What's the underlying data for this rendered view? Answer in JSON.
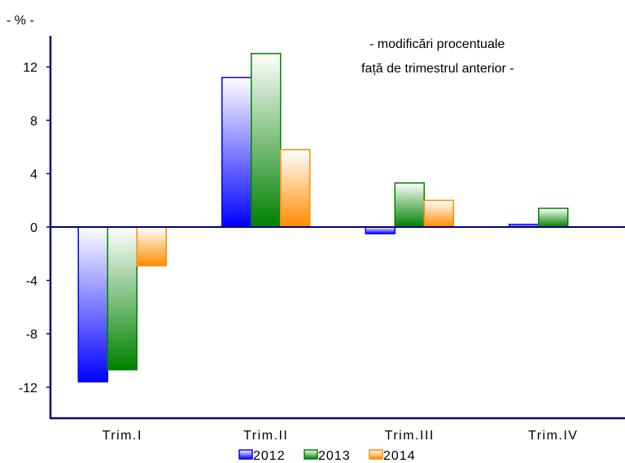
{
  "chart_data": {
    "type": "bar",
    "unit_label": "- % -",
    "annotation": [
      "- modificări procentuale",
      "față de trimestrul anterior -"
    ],
    "categories": [
      "Trim.I",
      "Trim.II",
      "Trim.III",
      "Trim.IV"
    ],
    "series": [
      {
        "name": "2012",
        "values": [
          -11.6,
          11.2,
          -0.5,
          0.2
        ],
        "color": "#0000ff"
      },
      {
        "name": "2013",
        "values": [
          -10.7,
          13.0,
          3.3,
          1.4
        ],
        "color": "#008000"
      },
      {
        "name": "2014",
        "values": [
          -2.9,
          5.8,
          2.0,
          null
        ],
        "color": "#ff8c00"
      }
    ],
    "y_ticks": [
      12,
      8,
      4,
      0,
      -4,
      -8,
      -12
    ],
    "ylim": [
      -14.4,
      14.2
    ],
    "grid": false,
    "legend_position": "bottom-center"
  }
}
